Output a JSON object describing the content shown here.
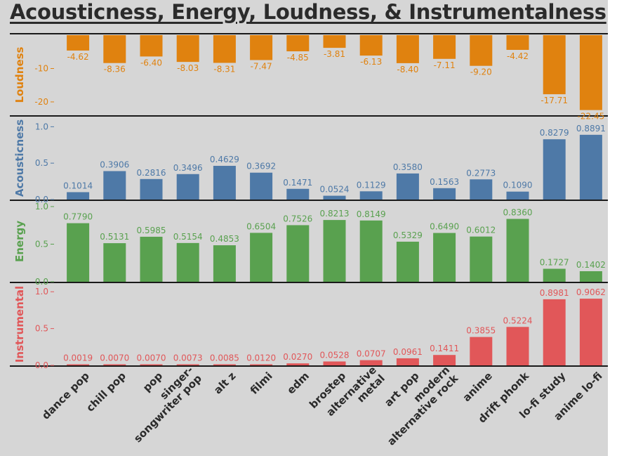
{
  "chart_data": {
    "type": "bar",
    "title": "Acousticness, Energy, Loudness, & Instrumentalness",
    "categories": [
      "dance pop",
      "chill pop",
      "pop",
      "singer-songwriter pop",
      "alt z",
      "filmi",
      "edm",
      "brostep",
      "alternative metal",
      "art pop",
      "modern alternative rock",
      "anime",
      "drift phonk",
      "lo-fi study",
      "anime lo-fi"
    ],
    "category_labels": [
      [
        "dance pop"
      ],
      [
        "chill pop"
      ],
      [
        "pop"
      ],
      [
        "singer-",
        "songwriter pop"
      ],
      [
        "alt z"
      ],
      [
        "filmi"
      ],
      [
        "edm"
      ],
      [
        "brostep"
      ],
      [
        "alternative",
        "metal"
      ],
      [
        "art pop"
      ],
      [
        "modern",
        "alternative rock"
      ],
      [
        "anime"
      ],
      [
        "drift phonk"
      ],
      [
        "lo-fi study"
      ],
      [
        "anime lo-fi"
      ]
    ],
    "series": [
      {
        "name": "Loudness",
        "color": "#e0820f",
        "ylim": [
          -24,
          0
        ],
        "ticks": [
          {
            "v": -10,
            "label": "-10"
          },
          {
            "v": -20,
            "label": "-20"
          }
        ],
        "values": [
          -4.62,
          -8.36,
          -6.4,
          -8.03,
          -8.31,
          -7.47,
          -4.85,
          -3.81,
          -6.13,
          -8.4,
          -7.11,
          -9.2,
          -4.42,
          -17.71,
          -22.45
        ],
        "labels": [
          "-4.62",
          "-8.36",
          "-6.40",
          "-8.03",
          "-8.31",
          "-7.47",
          "-4.85",
          "-3.81",
          "-6.13",
          "-8.40",
          "-7.11",
          "-9.20",
          "-4.42",
          "-17.71",
          "-22.45"
        ]
      },
      {
        "name": "Acousticness",
        "color": "#4e79a7",
        "ylim": [
          0,
          1.1
        ],
        "ticks": [
          {
            "v": 0,
            "label": "0.0"
          },
          {
            "v": 0.5,
            "label": "0.5"
          },
          {
            "v": 1.0,
            "label": "1.0"
          }
        ],
        "values": [
          0.1014,
          0.3906,
          0.2816,
          0.3496,
          0.4629,
          0.3692,
          0.1471,
          0.0524,
          0.1129,
          0.358,
          0.1563,
          0.2773,
          0.109,
          0.8279,
          0.8891
        ],
        "labels": [
          "0.1014",
          "0.3906",
          "0.2816",
          "0.3496",
          "0.4629",
          "0.3692",
          "0.1471",
          "0.0524",
          "0.1129",
          "0.3580",
          "0.1563",
          "0.2773",
          "0.1090",
          "0.8279",
          "0.8891"
        ]
      },
      {
        "name": "Energy",
        "color": "#59a14f",
        "ylim": [
          0,
          1.0
        ],
        "ticks": [
          {
            "v": 0,
            "label": "0.0"
          },
          {
            "v": 0.5,
            "label": "0.5"
          },
          {
            "v": 1.0,
            "label": "1.0"
          }
        ],
        "values": [
          0.779,
          0.5131,
          0.5985,
          0.5154,
          0.4853,
          0.6504,
          0.7526,
          0.8213,
          0.8149,
          0.5329,
          0.649,
          0.6012,
          0.836,
          0.1727,
          0.1402
        ],
        "labels": [
          "0.7790",
          "0.5131",
          "0.5985",
          "0.5154",
          "0.4853",
          "0.6504",
          "0.7526",
          "0.8213",
          "0.8149",
          "0.5329",
          "0.6490",
          "0.6012",
          "0.8360",
          "0.1727",
          "0.1402"
        ]
      },
      {
        "name": "Instrumental",
        "color": "#e15759",
        "ylim": [
          0,
          1.05
        ],
        "ticks": [
          {
            "v": 0,
            "label": "0.0"
          },
          {
            "v": 0.5,
            "label": "0.5"
          },
          {
            "v": 1.0,
            "label": "1.0"
          }
        ],
        "values": [
          0.0019,
          0.007,
          0.007,
          0.0073,
          0.0085,
          0.012,
          0.027,
          0.0528,
          0.0707,
          0.0961,
          0.1411,
          0.3855,
          0.5224,
          0.8981,
          0.9062
        ],
        "labels": [
          "0.0019",
          "0.0070",
          "0.0070",
          "0.0073",
          "0.0085",
          "0.0120",
          "0.0270",
          "0.0528",
          "0.0707",
          "0.0961",
          "0.1411",
          "0.3855",
          "0.5224",
          "0.8981",
          "0.9062"
        ]
      }
    ]
  }
}
